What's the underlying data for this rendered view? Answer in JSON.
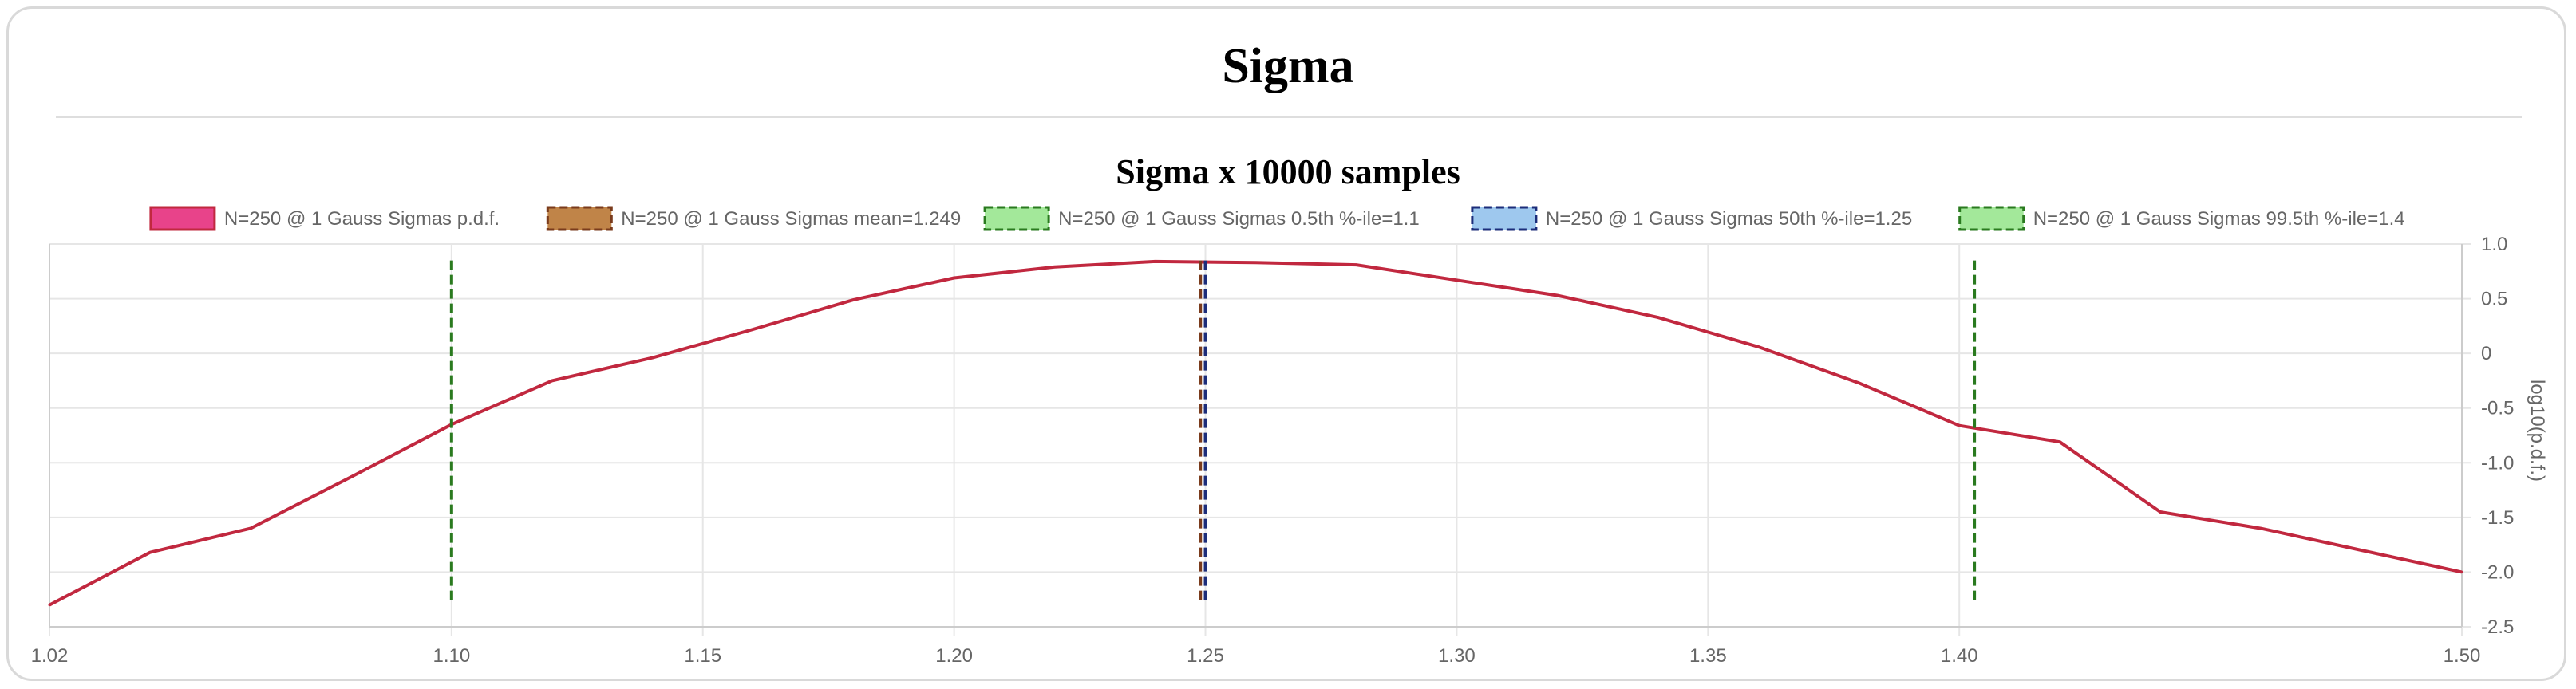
{
  "page": {
    "title": "Sigma"
  },
  "chart_data": {
    "type": "line",
    "title": "Sigma x 10000 samples",
    "xlabel": "",
    "ylabel": "log10(p.d.f.)",
    "xlim": [
      1.02,
      1.5
    ],
    "ylim": [
      -2.5,
      1.0
    ],
    "x_ticks": [
      "1.02",
      "1.10",
      "1.15",
      "1.20",
      "1.25",
      "1.30",
      "1.35",
      "1.40",
      "1.50"
    ],
    "y_ticks": [
      "1.0",
      "0.5",
      "0",
      "-0.5",
      "-1.0",
      "-1.5",
      "-2.0",
      "-2.5"
    ],
    "grid": true,
    "legend_position": "top",
    "series": [
      {
        "name": "N=250 @ 1 Gauss Sigmas p.d.f.",
        "kind": "line",
        "color": "#c1283f",
        "swatch_fill": "#e8438a",
        "x": [
          1.02,
          1.04,
          1.06,
          1.08,
          1.1,
          1.12,
          1.14,
          1.16,
          1.18,
          1.2,
          1.22,
          1.24,
          1.26,
          1.28,
          1.3,
          1.32,
          1.34,
          1.36,
          1.38,
          1.4,
          1.42,
          1.44,
          1.46,
          1.48,
          1.5
        ],
        "y": [
          -2.3,
          -1.82,
          -1.6,
          -1.13,
          -0.65,
          -0.25,
          -0.04,
          0.22,
          0.49,
          0.69,
          0.79,
          0.84,
          0.83,
          0.81,
          0.67,
          0.53,
          0.33,
          0.06,
          -0.27,
          -0.66,
          -0.81,
          -1.45,
          -1.6,
          -1.8,
          -2.0
        ]
      },
      {
        "name": "N=250 @ 1 Gauss Sigmas mean=1.249",
        "kind": "vline",
        "x": 1.249,
        "color": "#7a3b1c",
        "swatch_fill": "#c08448",
        "dashed": true
      },
      {
        "name": "N=250 @ 1 Gauss Sigmas 0.5th %-ile=1.1",
        "kind": "vline",
        "x": 1.1,
        "color": "#2a7a1f",
        "swatch_fill": "#a3e89a",
        "dashed": true
      },
      {
        "name": "N=250 @ 1 Gauss Sigmas 50th %-ile=1.25",
        "kind": "vline",
        "x": 1.25,
        "color": "#1c2d7a",
        "swatch_fill": "#9ec8ee",
        "dashed": true
      },
      {
        "name": "N=250 @ 1 Gauss Sigmas 99.5th %-ile=1.4",
        "kind": "vline",
        "x": 1.403,
        "color": "#2a7a1f",
        "swatch_fill": "#a3e89a",
        "dashed": true
      }
    ]
  }
}
